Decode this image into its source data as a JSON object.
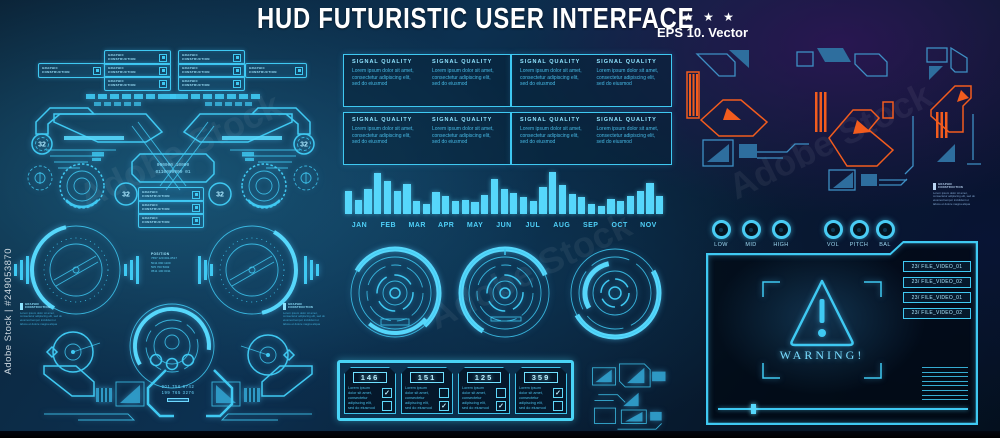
{
  "page": {
    "title": "HUD FUTURISTIC USER INTERFACE",
    "stars": "★ ★ ★",
    "eps": "EPS 10. Vector"
  },
  "watermark": {
    "left_bar": "Adobe Stock | #249053870",
    "ghost": "Adobe Stock"
  },
  "labels": {
    "graphic_construction": "GRAPHIC CONSTRUCTION",
    "signal_quality": "SIGNAL QUALITY",
    "lorem_short": "Lorem ipsum dolor sit amet, consectetur adipiscing elit, sed do eiusmod",
    "warning": "WARNING!",
    "gauge_value": "32",
    "readout_line1": "000000 10000",
    "readout_line2": "0110000000 01",
    "phone1": "901 756 8742",
    "phone2": "199 765 3276"
  },
  "position": {
    "header": "POSITION",
    "lines": [
      "7657 120 001-0517",
      "5011 090 1100",
      "505 700 5002",
      "0511 100 0011"
    ]
  },
  "text_blocks": {
    "header": "GRAPHIC CONSTRUCTION",
    "body": "Lorem ipsum dolor sit amet, consectetur adipiscing elit, sed do eiusmod tempor incididunt ut labore et dolore magna aliqua"
  },
  "knobs": {
    "eq": [
      "LOW",
      "MID",
      "HIGH"
    ],
    "av": [
      "VOL",
      "PITCH",
      "BAL"
    ]
  },
  "file_list": [
    "23/ FILE_VIDEO_01",
    "23/ FILE_VIDEO_02",
    "23/ FILE_VIDEO_01",
    "23/ FILE_VIDEO_02"
  ],
  "cards": [
    {
      "value": "146",
      "checked": "top"
    },
    {
      "value": "151",
      "checked": "bottom"
    },
    {
      "value": "125",
      "checked": "bottom"
    },
    {
      "value": "359",
      "checked": "top"
    }
  ],
  "chart_data": {
    "type": "bar",
    "title": "",
    "xlabel": "",
    "ylabel": "",
    "ylim": [
      0,
      1
    ],
    "legend": false,
    "grid": false,
    "bars_per_month": 3,
    "categories": [
      "JAN",
      "FEB",
      "MAR",
      "APR",
      "MAY",
      "JUN",
      "JUL",
      "AUG",
      "SEP",
      "OCT",
      "NOV"
    ],
    "values": [
      [
        0.55,
        0.33,
        0.6
      ],
      [
        0.97,
        0.78,
        0.55
      ],
      [
        0.72,
        0.3,
        0.25
      ],
      [
        0.52,
        0.44,
        0.3
      ],
      [
        0.34,
        0.28,
        0.46
      ],
      [
        0.83,
        0.6,
        0.5
      ],
      [
        0.4,
        0.3,
        0.64
      ],
      [
        1.0,
        0.68,
        0.48
      ],
      [
        0.4,
        0.24,
        0.18
      ],
      [
        0.36,
        0.3,
        0.42
      ],
      [
        0.55,
        0.74,
        0.44
      ]
    ]
  },
  "colors": {
    "cyan": "#3fc9f2",
    "bright": "#56d7fb",
    "orange": "#f25c1e",
    "bg_dark": "#04101e",
    "white": "#ffffff"
  }
}
